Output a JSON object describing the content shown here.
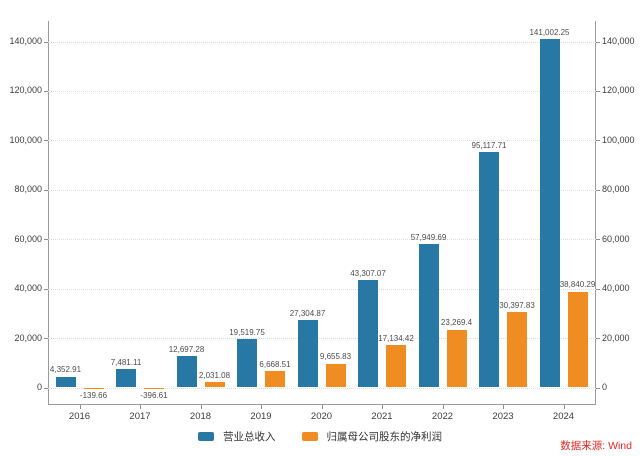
{
  "chart_data": {
    "type": "bar",
    "title": "",
    "categories": [
      "2016",
      "2017",
      "2018",
      "2019",
      "2020",
      "2021",
      "2022",
      "2023",
      "2024"
    ],
    "series": [
      {
        "key": "revenue",
        "name": "营业总收入",
        "color": "#2878a6",
        "values": [
          4352.91,
          7481.11,
          12697.28,
          19519.75,
          27304.87,
          43307.07,
          57949.69,
          95117.71,
          141002.25
        ],
        "labels": [
          "4,352.91",
          "7,481.11",
          "12,697.28",
          "19,519.75",
          "27,304.87",
          "43,307.07",
          "57,949.69",
          "95,117.71",
          "141,002.25"
        ]
      },
      {
        "key": "net-profit",
        "name": "归属母公司股东的净利润",
        "color": "#ef8d22",
        "values": [
          -139.66,
          -396.61,
          2031.08,
          6668.51,
          9655.83,
          17134.42,
          23269.4,
          30397.83,
          38840.29
        ],
        "labels": [
          "-139.66",
          "-396.61",
          "2,031.08",
          "6,668.51",
          "9,655.83",
          "17,134.42",
          "23,269.4",
          "30,397.83",
          "38,840.29"
        ]
      }
    ],
    "y_axis": {
      "min": 0,
      "max": 140000,
      "tick_values": [
        0,
        20000,
        40000,
        60000,
        80000,
        100000,
        120000,
        140000
      ],
      "tick_labels": [
        "0",
        "20,000",
        "40,000",
        "60,000",
        "80,000",
        "100,000",
        "120,000",
        "140,000"
      ],
      "dual_axis": true
    },
    "legend_position": "bottom",
    "grid": true
  },
  "source_note": "数据来源: Wind",
  "colors": {
    "revenue": "#2878a6",
    "net_profit": "#ef8d22",
    "source_text": "#dd2823",
    "gridline": "#dcdcdc",
    "axis": "#9a9a9a"
  }
}
